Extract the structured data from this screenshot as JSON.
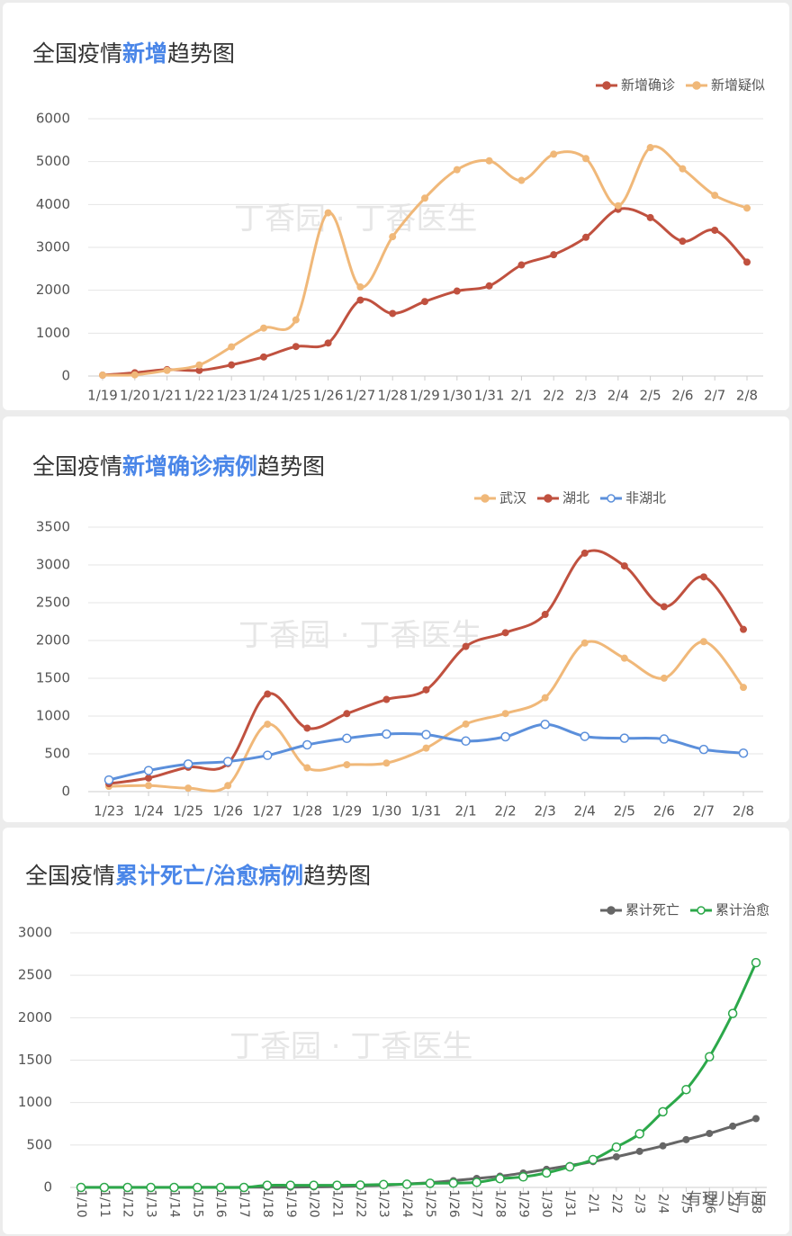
{
  "chart_data": [
    {
      "type": "line",
      "title": [
        "全国疫情",
        "新增",
        "趋势图"
      ],
      "title_highlight": 1,
      "highlight_color": "#4a86e8",
      "watermark": "丁香园 · 丁香医生",
      "categories": [
        "1/19",
        "1/20",
        "1/21",
        "1/22",
        "1/23",
        "1/24",
        "1/25",
        "1/26",
        "1/27",
        "1/28",
        "1/29",
        "1/30",
        "1/31",
        "2/1",
        "2/2",
        "2/3",
        "2/4",
        "2/5",
        "2/6",
        "2/7",
        "2/8"
      ],
      "series": [
        {
          "name": "新增确诊",
          "color": "#c0513f",
          "marker": "filled",
          "values": [
            20,
            77,
            149,
            131,
            259,
            444,
            688,
            769,
            1771,
            1459,
            1737,
            1982,
            2102,
            2590,
            2829,
            3235,
            3887,
            3694,
            3143,
            3399,
            2656
          ]
        },
        {
          "name": "新增疑似",
          "color": "#f0b879",
          "marker": "filled",
          "values": [
            20,
            27,
            130,
            257,
            680,
            1118,
            1309,
            3806,
            2077,
            3248,
            4148,
            4812,
            5019,
            4562,
            5173,
            5072,
            3971,
            5328,
            4833,
            4214,
            3916
          ]
        }
      ],
      "ylim": [
        0,
        6000
      ],
      "yticks": [
        0,
        1000,
        2000,
        3000,
        4000,
        5000,
        6000
      ],
      "grid": true,
      "legend": "top-right"
    },
    {
      "type": "line",
      "title": [
        "全国疫情",
        "新增确诊病例",
        "趋势图"
      ],
      "title_highlight": 1,
      "highlight_color": "#4a86e8",
      "watermark": "丁香园 · 丁香医生",
      "categories": [
        "1/23",
        "1/24",
        "1/25",
        "1/26",
        "1/27",
        "1/28",
        "1/29",
        "1/30",
        "1/31",
        "2/1",
        "2/2",
        "2/3",
        "2/4",
        "2/5",
        "2/6",
        "2/7",
        "2/8"
      ],
      "series": [
        {
          "name": "武汉",
          "color": "#f0b879",
          "marker": "filled",
          "values": [
            70,
            80,
            46,
            80,
            892,
            315,
            356,
            378,
            576,
            894,
            1033,
            1242,
            1967,
            1766,
            1501,
            1985,
            1379
          ]
        },
        {
          "name": "湖北",
          "color": "#c0513f",
          "marker": "filled",
          "values": [
            105,
            180,
            323,
            371,
            1291,
            840,
            1032,
            1220,
            1347,
            1921,
            2103,
            2345,
            3156,
            2987,
            2447,
            2841,
            2147
          ]
        },
        {
          "name": "非湖北",
          "color": "#5b8fdb",
          "marker": "hollow",
          "values": [
            154,
            279,
            365,
            398,
            480,
            619,
            705,
            762,
            755,
            669,
            726,
            890,
            731,
            707,
            696,
            558,
            509
          ]
        }
      ],
      "ylim": [
        0,
        3500
      ],
      "yticks": [
        0,
        500,
        1000,
        1500,
        2000,
        2500,
        3000,
        3500
      ],
      "grid": true,
      "legend": "top-right"
    },
    {
      "type": "line",
      "title": [
        "全国疫情",
        "累计死亡/治愈病例",
        "趋势图"
      ],
      "title_highlight": 1,
      "highlight_color": "#4a86e8",
      "watermark": "丁香园 · 丁香医生",
      "signature": "有理儿有面",
      "categories": [
        "1/10",
        "1/11",
        "1/12",
        "1/13",
        "1/14",
        "1/15",
        "1/16",
        "1/17",
        "1/18",
        "1/19",
        "1/20",
        "1/21",
        "1/22",
        "1/23",
        "1/24",
        "1/25",
        "1/26",
        "1/27",
        "1/28",
        "1/29",
        "1/30",
        "1/31",
        "2/1",
        "2/2",
        "2/3",
        "2/4",
        "2/5",
        "2/6",
        "2/7",
        "2/8"
      ],
      "series": [
        {
          "name": "累计死亡",
          "color": "#666666",
          "marker": "filled",
          "values": [
            1,
            1,
            1,
            1,
            1,
            2,
            2,
            2,
            3,
            3,
            6,
            9,
            17,
            25,
            41,
            56,
            80,
            106,
            132,
            170,
            213,
            259,
            304,
            361,
            425,
            490,
            563,
            636,
            722,
            811
          ]
        },
        {
          "name": "累计治愈",
          "color": "#2ca84a",
          "marker": "hollow",
          "values": [
            0,
            0,
            0,
            0,
            0,
            0,
            0,
            0,
            25,
            25,
            25,
            25,
            28,
            34,
            38,
            49,
            51,
            60,
            103,
            124,
            171,
            243,
            328,
            475,
            632,
            892,
            1153,
            1540,
            2050,
            2649
          ]
        }
      ],
      "ylim": [
        0,
        3000
      ],
      "yticks": [
        0,
        500,
        1000,
        1500,
        2000,
        2500,
        3000
      ],
      "grid": true,
      "legend": "top-right",
      "rotate_x_labels": true
    }
  ]
}
